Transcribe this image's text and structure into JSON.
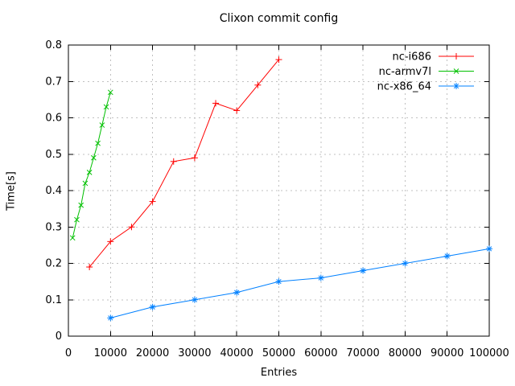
{
  "chart_data": {
    "type": "line",
    "title": "Clixon commit config",
    "xlabel": "Entries",
    "ylabel": "Time[s]",
    "xlim": [
      0,
      100000
    ],
    "ylim": [
      0,
      0.8
    ],
    "grid": true,
    "legend_position": "top-right-inside",
    "background_color": "#ffffff",
    "grid_color": "#c0c0c0",
    "axis_color": "#000000",
    "xtick_values": [
      0,
      10000,
      20000,
      30000,
      40000,
      50000,
      60000,
      70000,
      80000,
      90000,
      100000
    ],
    "xtick_labels": [
      "0",
      "10000",
      "20000",
      "30000",
      "40000",
      "50000",
      "60000",
      "70000",
      "80000",
      "90000",
      "100000"
    ],
    "ytick_values": [
      0,
      0.1,
      0.2,
      0.3,
      0.4,
      0.5,
      0.6,
      0.7,
      0.8
    ],
    "ytick_labels": [
      "0",
      "0.1",
      "0.2",
      "0.3",
      "0.4",
      "0.5",
      "0.6",
      "0.7",
      "0.8"
    ],
    "series": [
      {
        "name": "nc-i686",
        "color": "#ff0000",
        "marker": "plus",
        "x": [
          5000,
          10000,
          15000,
          20000,
          25000,
          30000,
          35000,
          40000,
          45000,
          50000
        ],
        "y": [
          0.19,
          0.26,
          0.3,
          0.37,
          0.48,
          0.49,
          0.64,
          0.62,
          0.69,
          0.76
        ]
      },
      {
        "name": "nc-armv7l",
        "color": "#00c000",
        "marker": "cross",
        "x": [
          1000,
          2000,
          3000,
          4000,
          5000,
          6000,
          7000,
          8000,
          9000,
          10000
        ],
        "y": [
          0.27,
          0.32,
          0.36,
          0.42,
          0.45,
          0.49,
          0.53,
          0.58,
          0.63,
          0.67
        ]
      },
      {
        "name": "nc-x86_64",
        "color": "#0080ff",
        "marker": "asterisk",
        "x": [
          10000,
          20000,
          30000,
          40000,
          50000,
          60000,
          70000,
          80000,
          90000,
          100000
        ],
        "y": [
          0.05,
          0.08,
          0.1,
          0.12,
          0.15,
          0.16,
          0.18,
          0.2,
          0.22,
          0.24
        ]
      }
    ]
  }
}
